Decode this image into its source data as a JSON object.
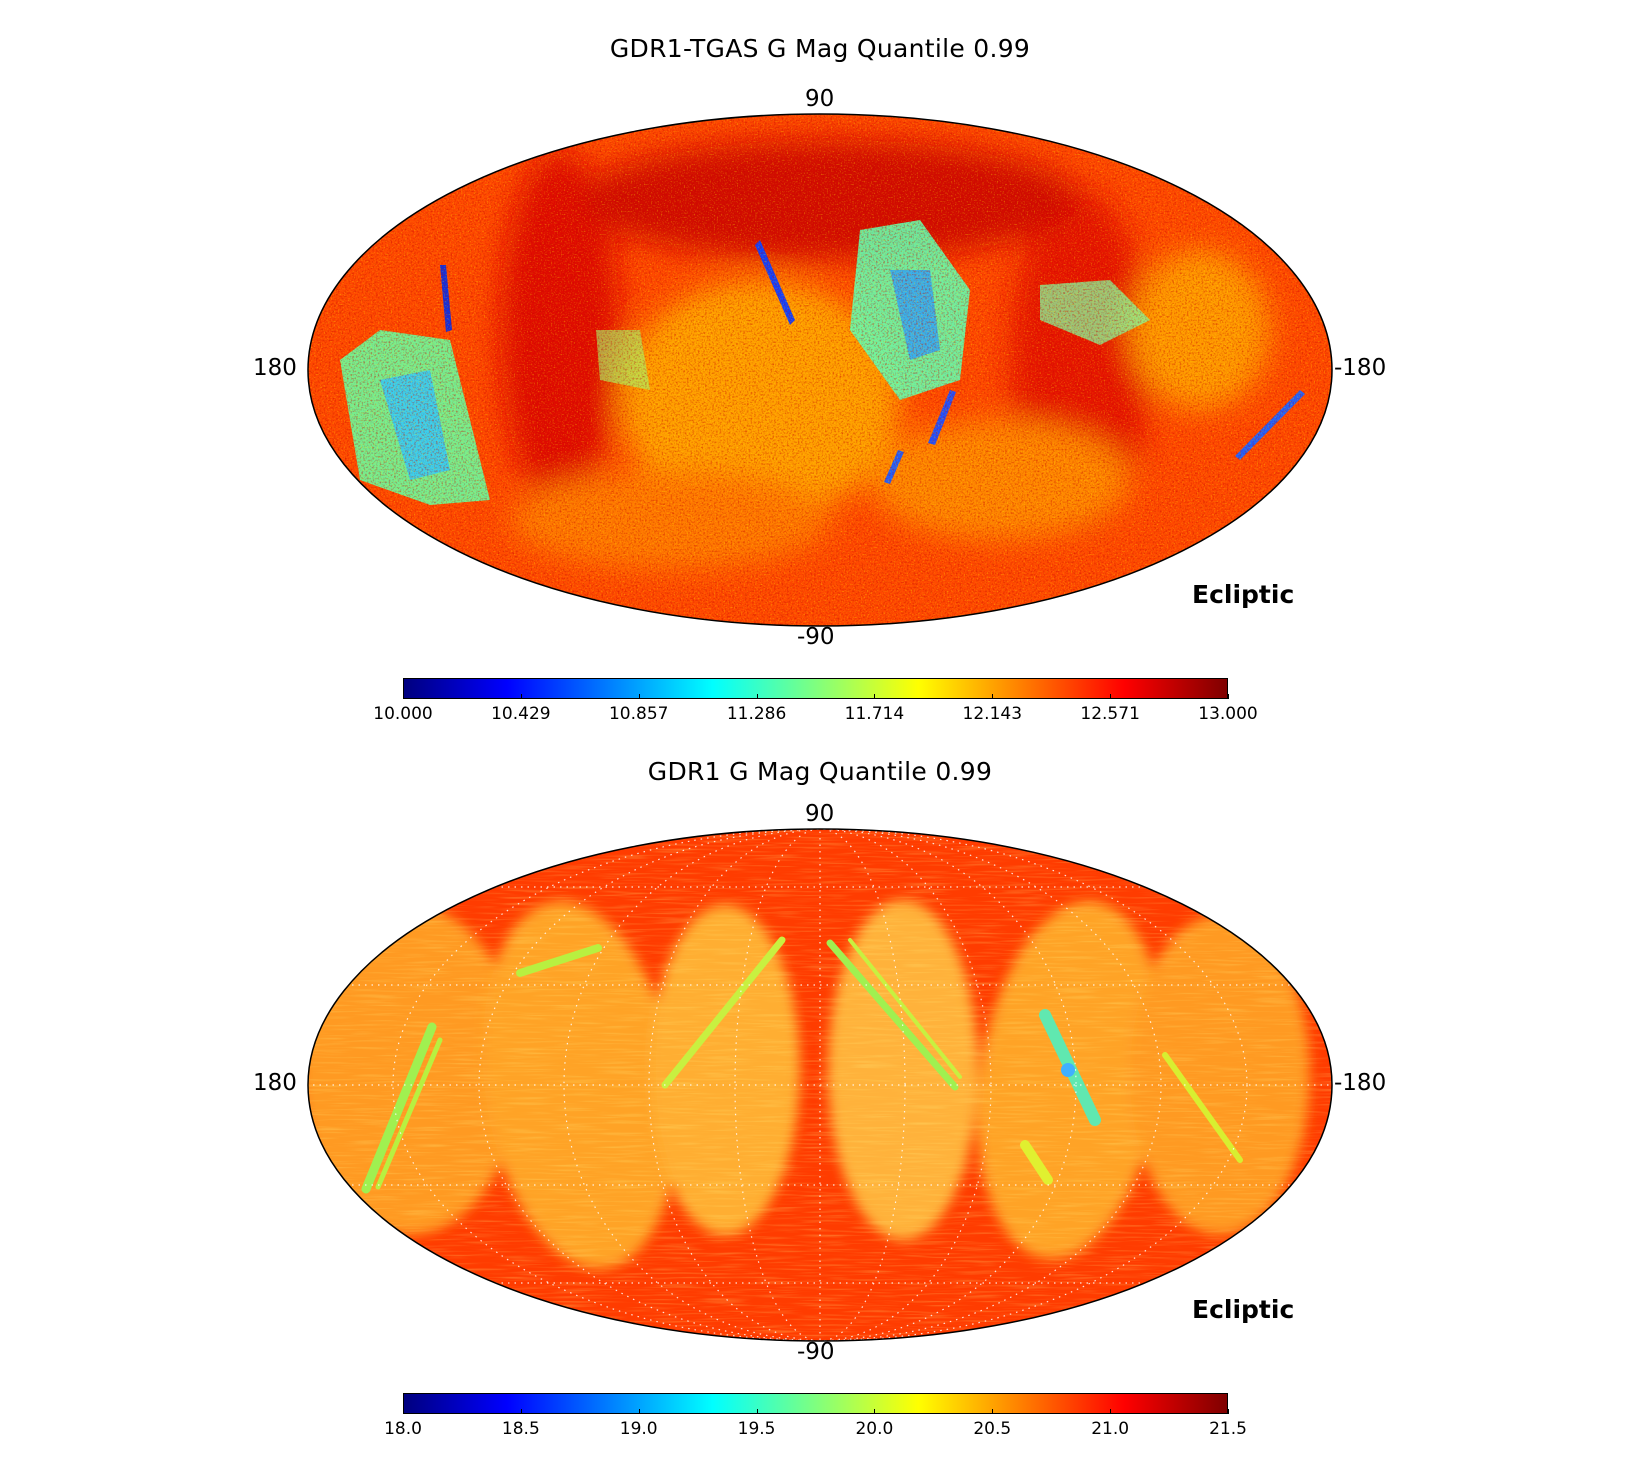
{
  "chart_data": [
    {
      "type": "heatmap",
      "projection": "mollweide",
      "title": "GDR1-TGAS G Mag Quantile 0.99",
      "coordinate_frame_label": "Ecliptic",
      "lat_labels": {
        "top": "90",
        "bottom": "-90"
      },
      "lon_labels": {
        "left": "180",
        "right": "-180"
      },
      "colormap": "jet",
      "color_range": [
        10.0,
        13.0
      ],
      "colorbar_ticks": [
        "10.000",
        "10.429",
        "10.857",
        "11.286",
        "11.714",
        "12.143",
        "12.571",
        "13.000"
      ],
      "graticule": false
    },
    {
      "type": "heatmap",
      "projection": "mollweide",
      "title": "GDR1 G Mag Quantile 0.99",
      "coordinate_frame_label": "Ecliptic",
      "lat_labels": {
        "top": "90",
        "bottom": "-90"
      },
      "lon_labels": {
        "left": "180",
        "right": "-180"
      },
      "colormap": "jet",
      "color_range": [
        18.0,
        21.5
      ],
      "colorbar_ticks": [
        "18.0",
        "18.5",
        "19.0",
        "19.5",
        "20.0",
        "20.5",
        "21.0",
        "21.5"
      ],
      "graticule": true
    }
  ],
  "colors": {
    "jet": [
      "#00007f",
      "#0000ff",
      "#007fff",
      "#00ffff",
      "#7fff7f",
      "#ffff00",
      "#ff7f00",
      "#ff0000",
      "#7f0000"
    ],
    "graticule": "#ffffff"
  }
}
